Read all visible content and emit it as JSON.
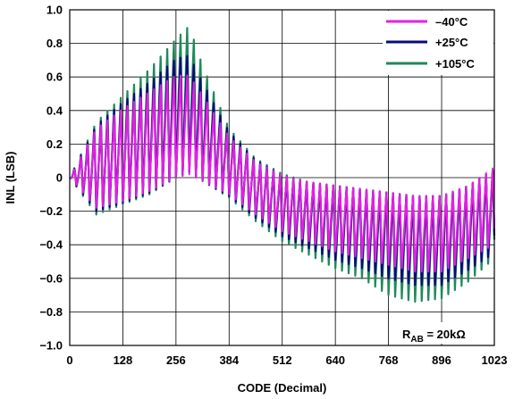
{
  "chart_data": {
    "type": "line",
    "xlabel": "CODE (Decimal)",
    "ylabel": "INL (LSB)",
    "xlim": [
      0,
      1023
    ],
    "ylim": [
      -1.0,
      1.0
    ],
    "xticks": [
      "0",
      "128",
      "256",
      "384",
      "512",
      "640",
      "768",
      "896",
      "1023"
    ],
    "yticks": [
      "1.0",
      "0.8",
      "0.6",
      "0.4",
      "0.2",
      "0",
      "−0.2",
      "−0.4",
      "−0.6",
      "−0.8",
      "−1.0"
    ],
    "grid": true,
    "legend_position": "top-right",
    "annotation": {
      "main": "R",
      "sub": "AB",
      "rest": " = 20kΩ"
    },
    "series": [
      {
        "name": "–40°C",
        "color": "#e61ee6",
        "x": [
          0,
          64,
          128,
          192,
          256,
          288,
          320,
          384,
          448,
          512,
          576,
          640,
          704,
          768,
          832,
          896,
          960,
          1023
        ],
        "y_mean": [
          0.0,
          0.08,
          0.12,
          0.2,
          0.28,
          0.3,
          0.24,
          0.05,
          -0.08,
          -0.18,
          -0.22,
          -0.26,
          -0.28,
          -0.3,
          -0.3,
          -0.28,
          -0.22,
          -0.15
        ],
        "y_peak": [
          0.0,
          0.3,
          0.42,
          0.52,
          0.62,
          0.62,
          0.5,
          0.25,
          0.1,
          0.02,
          -0.02,
          -0.04,
          -0.06,
          -0.08,
          -0.1,
          -0.1,
          -0.04,
          0.07
        ],
        "y_trough": [
          0.0,
          -0.18,
          -0.14,
          -0.08,
          0.0,
          0.02,
          -0.02,
          -0.1,
          -0.22,
          -0.32,
          -0.38,
          -0.44,
          -0.48,
          -0.52,
          -0.56,
          -0.56,
          -0.48,
          -0.4
        ]
      },
      {
        "name": "+25°C",
        "color": "#0a0a7a",
        "x": [
          0,
          64,
          128,
          192,
          256,
          288,
          320,
          384,
          448,
          512,
          576,
          640,
          704,
          768,
          832,
          896,
          960,
          1023
        ],
        "y_mean": [
          0.0,
          0.09,
          0.14,
          0.23,
          0.32,
          0.34,
          0.27,
          0.06,
          -0.08,
          -0.19,
          -0.24,
          -0.28,
          -0.31,
          -0.34,
          -0.35,
          -0.33,
          -0.26,
          -0.18
        ],
        "y_peak": [
          0.0,
          0.32,
          0.46,
          0.58,
          0.72,
          0.74,
          0.58,
          0.28,
          0.11,
          0.02,
          -0.02,
          -0.04,
          -0.06,
          -0.08,
          -0.1,
          -0.1,
          -0.04,
          0.06
        ],
        "y_trough": [
          0.0,
          -0.2,
          -0.15,
          -0.09,
          0.0,
          0.03,
          -0.02,
          -0.11,
          -0.24,
          -0.35,
          -0.42,
          -0.49,
          -0.54,
          -0.6,
          -0.64,
          -0.64,
          -0.55,
          -0.45
        ]
      },
      {
        "name": "+105°C",
        "color": "#1f8a5a",
        "x": [
          0,
          64,
          128,
          192,
          256,
          288,
          320,
          384,
          448,
          512,
          576,
          640,
          704,
          768,
          832,
          896,
          960,
          1023
        ],
        "y_mean": [
          0.0,
          0.1,
          0.16,
          0.26,
          0.36,
          0.38,
          0.3,
          0.07,
          -0.09,
          -0.2,
          -0.26,
          -0.3,
          -0.34,
          -0.38,
          -0.4,
          -0.38,
          -0.3,
          -0.2
        ],
        "y_peak": [
          0.0,
          0.34,
          0.5,
          0.66,
          0.84,
          0.92,
          0.68,
          0.3,
          0.12,
          0.03,
          -0.02,
          -0.04,
          -0.06,
          -0.08,
          -0.1,
          -0.1,
          -0.04,
          0.05
        ],
        "y_trough": [
          0.0,
          -0.22,
          -0.16,
          -0.1,
          0.0,
          0.04,
          -0.02,
          -0.12,
          -0.26,
          -0.38,
          -0.46,
          -0.54,
          -0.6,
          -0.7,
          -0.74,
          -0.72,
          -0.62,
          -0.48
        ]
      }
    ]
  }
}
